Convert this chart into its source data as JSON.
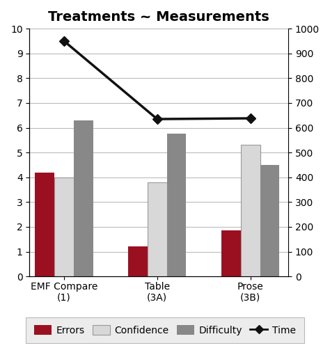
{
  "title": "Treatments ~ Measurements",
  "categories": [
    "EMF Compare\n(1)",
    "Table\n(3A)",
    "Prose\n(3B)"
  ],
  "errors": [
    4.2,
    1.2,
    1.85
  ],
  "confidence": [
    4.0,
    3.8,
    5.3
  ],
  "difficulty": [
    6.3,
    5.75,
    4.5
  ],
  "time": [
    950,
    635,
    638
  ],
  "bar_colors": {
    "errors": "#9B1020",
    "confidence": "#D8D8D8",
    "difficulty": "#888888"
  },
  "line_color": "#111111",
  "ylim_left": [
    0,
    10
  ],
  "ylim_right": [
    0,
    1000
  ],
  "yticks_left": [
    0,
    1,
    2,
    3,
    4,
    5,
    6,
    7,
    8,
    9,
    10
  ],
  "yticks_right": [
    0,
    100,
    200,
    300,
    400,
    500,
    600,
    700,
    800,
    900,
    1000
  ],
  "bar_width": 0.28,
  "background_color": "#FFFFFF",
  "legend_bg": "#E8E8E8",
  "legend_labels": [
    "Errors",
    "Confidence",
    "Difficulty",
    "Time"
  ],
  "title_fontsize": 14,
  "tick_fontsize": 10,
  "legend_fontsize": 10
}
